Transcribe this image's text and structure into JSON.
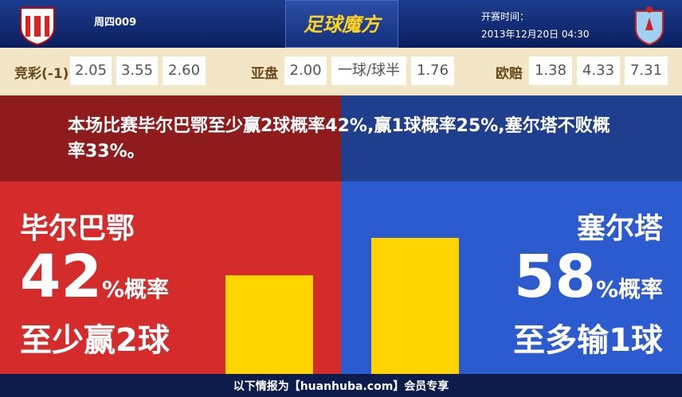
{
  "header": {
    "match": "周四009",
    "logo_text": "足球魔方",
    "start_label": "开赛时间：",
    "start_time": "2013年12月20日 04:30"
  },
  "odds": [
    {
      "label": "竞彩(-1)",
      "values": [
        "2.05",
        "3.55",
        "2.60"
      ]
    },
    {
      "label": "亚盘",
      "values": [
        "2.00",
        "一球/球半",
        "1.76"
      ]
    },
    {
      "label": "欧赔",
      "values": [
        "1.38",
        "4.33",
        "7.31"
      ]
    }
  ],
  "summary": "本场比赛毕尔巴鄂至少赢2球概率42%,赢1球概率25%,塞尔塔不败概率33%。",
  "sides": [
    {
      "name": "毕尔巴鄂",
      "probability": 42,
      "unit_text": "%概率",
      "result": "至少赢2球"
    },
    {
      "name": "塞尔塔",
      "probability": 58,
      "unit_text": "%概率",
      "result": "至多输1球"
    }
  ],
  "footer": "以下情报为【huanhuba.com】会员专享"
}
